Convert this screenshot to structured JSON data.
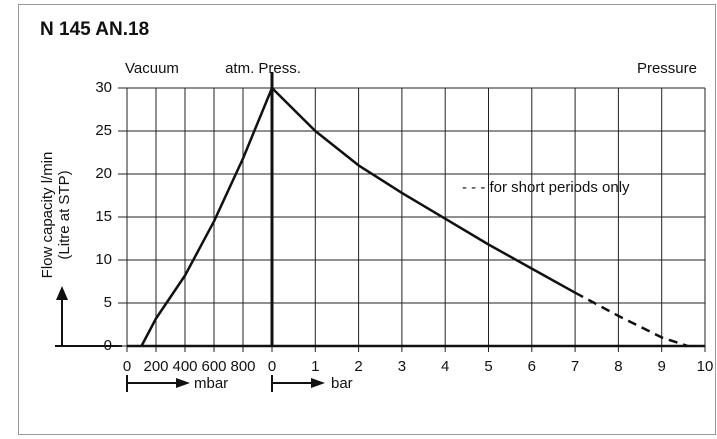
{
  "chart_data": {
    "type": "line",
    "title": "N 145 AN.18",
    "region_labels": [
      "Vacuum",
      "atm. Press.",
      "Pressure"
    ],
    "note": "- - - for short periods only",
    "y_label": [
      "Flow capacity l/min",
      "(Litre at STP)"
    ],
    "ylim": [
      0,
      30
    ],
    "yticks": [
      0,
      5,
      10,
      15,
      20,
      25,
      30
    ],
    "grid": true,
    "vacuum_axis": {
      "label": "mbar",
      "xlim": [
        0,
        1000
      ],
      "xticks": [
        0,
        200,
        400,
        600,
        800
      ]
    },
    "pressure_axis": {
      "label": "bar",
      "xlim": [
        0,
        10
      ],
      "xticks": [
        0,
        1,
        2,
        3,
        4,
        5,
        6,
        7,
        8,
        9,
        10
      ]
    },
    "series": [
      {
        "axis": "vacuum",
        "color": "#111111",
        "dashed": false,
        "x": [
          100,
          200,
          400,
          600,
          800,
          1000
        ],
        "values": [
          0,
          3.2,
          8.2,
          14.5,
          21.8,
          30
        ]
      },
      {
        "axis": "pressure",
        "color": "#111111",
        "dashed": false,
        "x": [
          0,
          1,
          2,
          3,
          4,
          5,
          6,
          7
        ],
        "values": [
          30,
          25,
          21,
          17.8,
          14.8,
          11.8,
          9,
          6.2
        ]
      },
      {
        "axis": "pressure",
        "color": "#111111",
        "dashed": true,
        "x": [
          7,
          8,
          9,
          9.6
        ],
        "values": [
          6.2,
          3.5,
          1,
          0
        ]
      }
    ]
  }
}
